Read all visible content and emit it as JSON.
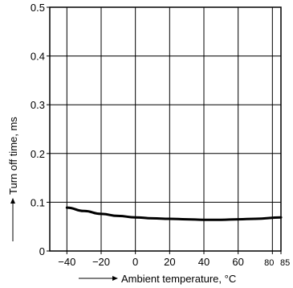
{
  "chart_data": {
    "type": "line",
    "title": "",
    "xlabel": "Ambient temperature, °C",
    "ylabel": "Turn off time, ms",
    "xlim": [
      -50,
      85
    ],
    "ylim": [
      0,
      0.5
    ],
    "x_ticks": [
      -40,
      -20,
      0,
      20,
      40,
      60,
      80,
      85
    ],
    "x_tick_labels": [
      "−40",
      "−20",
      "0",
      "20",
      "40",
      "60",
      "80",
      "85"
    ],
    "y_ticks": [
      0,
      0.1,
      0.2,
      0.3,
      0.4,
      0.5
    ],
    "y_tick_labels": [
      "0",
      "0.1",
      "0.2",
      "0.3",
      "0.4",
      "0.5"
    ],
    "grid": true,
    "legend": "none",
    "series": [
      {
        "color": "#000000",
        "x": [
          -40,
          -30,
          -20,
          -10,
          0,
          10,
          20,
          30,
          40,
          50,
          60,
          70,
          85
        ],
        "y": [
          0.089,
          0.082,
          0.076,
          0.072,
          0.069,
          0.067,
          0.066,
          0.065,
          0.064,
          0.064,
          0.065,
          0.066,
          0.069
        ]
      }
    ]
  }
}
